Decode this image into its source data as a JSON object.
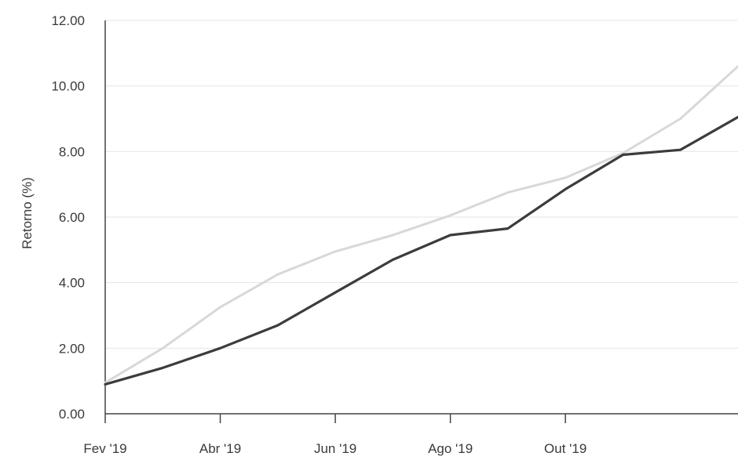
{
  "chart_data": {
    "type": "line",
    "title": "",
    "xlabel": "",
    "ylabel": "Retorno (%)",
    "ylim": [
      0,
      12
    ],
    "yticks": [
      "0.00",
      "2.00",
      "4.00",
      "6.00",
      "8.00",
      "10.00",
      "12.00"
    ],
    "ytick_values": [
      0,
      2,
      4,
      6,
      8,
      10,
      12
    ],
    "xticks": [
      "Fev '19",
      "Abr '19",
      "Jun '19",
      "Ago '19",
      "Out '19"
    ],
    "xtick_months": [
      0,
      2,
      4,
      6,
      8
    ],
    "x_months": [
      0,
      1,
      2,
      3,
      4,
      5,
      6,
      7,
      8,
      9,
      10,
      11
    ],
    "xlim_months": [
      0,
      11
    ],
    "grid": true,
    "legend": "none",
    "series": [
      {
        "color": "#d8d8d8",
        "values": [
          0.95,
          2.0,
          3.25,
          4.25,
          4.95,
          5.45,
          6.05,
          6.75,
          7.2,
          7.95,
          9.0,
          10.6
        ]
      },
      {
        "color": "#3c3c3c",
        "values": [
          0.9,
          1.4,
          2.0,
          2.7,
          3.7,
          4.7,
          5.45,
          5.65,
          6.85,
          7.9,
          8.05,
          9.05
        ]
      }
    ]
  }
}
